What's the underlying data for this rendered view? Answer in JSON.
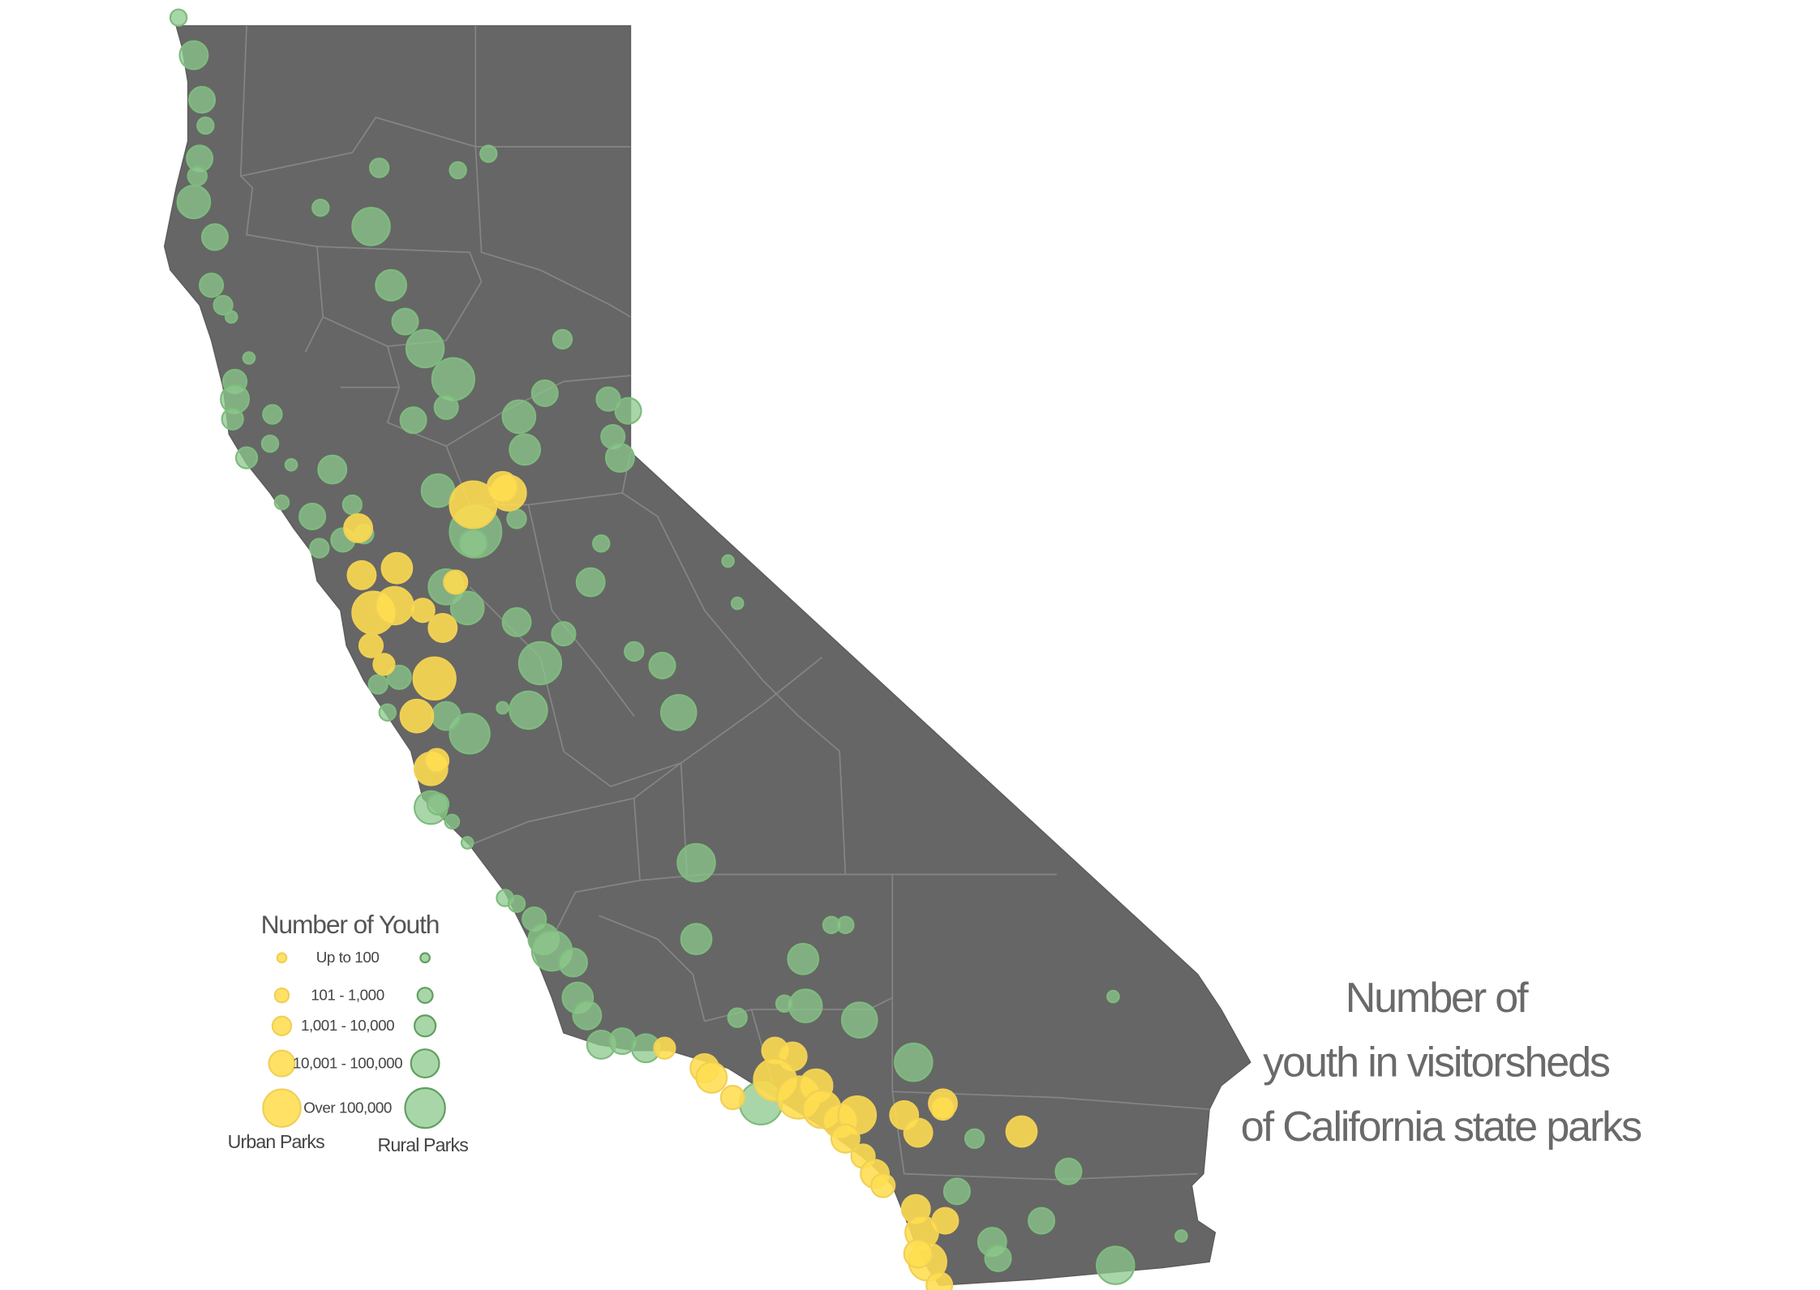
{
  "title_lines": [
    "Number of",
    "youth in visitorsheds",
    "of California state parks"
  ],
  "legend": {
    "title": "Number of Youth",
    "classes": [
      "Up to 100",
      "101 - 1,000",
      "1,001 - 10,000",
      "10,001 - 100,000",
      "Over 100,000"
    ],
    "urban_label": "Urban Parks",
    "rural_label": "Rural Parks"
  }
}
